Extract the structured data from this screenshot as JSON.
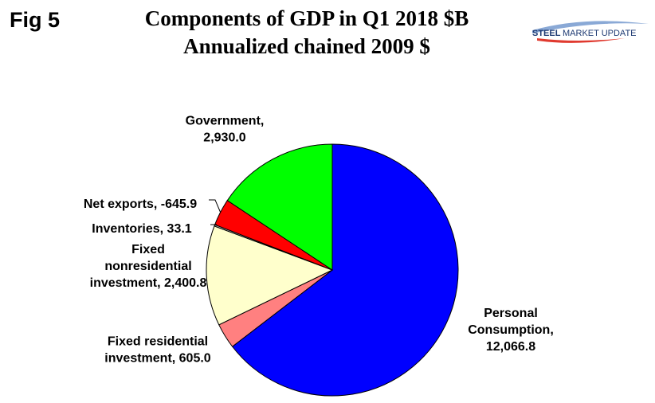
{
  "figure_label": "Fig 5",
  "title_line1": "Components of GDP in Q1 2018 $B",
  "title_line2": "Annualized chained 2009 $",
  "logo": {
    "text_steel": "STEEL",
    "text_rest": "MARKET UPDATE",
    "color_dark": "#1f3b73",
    "color_light": "#8aa9d6",
    "color_accent": "#e03a2f"
  },
  "chart_data": {
    "type": "pie",
    "title": "Components of GDP in Q1 2018 $B",
    "subtitle": "Annualized chained 2009 $",
    "slices": [
      {
        "name": "Personal Consumption",
        "value": 12066.8,
        "value_label": "12,066.8",
        "color": "#0000ff",
        "label_lines": [
          "Personal",
          "Consumption,",
          "12,066.8"
        ]
      },
      {
        "name": "Fixed residential investment",
        "value": 605.0,
        "value_label": "605.0",
        "color": "#ff8080",
        "label_lines": [
          "Fixed residential",
          "investment, 605.0"
        ]
      },
      {
        "name": "Fixed nonresidential investment",
        "value": 2400.8,
        "value_label": "2,400.8",
        "color": "#ffffcc",
        "label_lines": [
          "Fixed",
          "nonresidential",
          "investment, 2,400.8"
        ]
      },
      {
        "name": "Inventories",
        "value": 33.1,
        "value_label": "33.1",
        "color": "#c0c0c0",
        "label_lines": [
          "Inventories, 33.1"
        ]
      },
      {
        "name": "Net exports",
        "value": -645.9,
        "value_label": "-645.9",
        "color": "#ff0000",
        "label_lines": [
          "Net exports, -645.9"
        ]
      },
      {
        "name": "Government",
        "value": 2930.0,
        "value_label": "2,930.0",
        "color": "#00ff00",
        "label_lines": [
          "Government,",
          "2,930.0"
        ]
      }
    ],
    "start_angle": "12 o'clock",
    "direction": "clockwise",
    "legend": "none"
  }
}
